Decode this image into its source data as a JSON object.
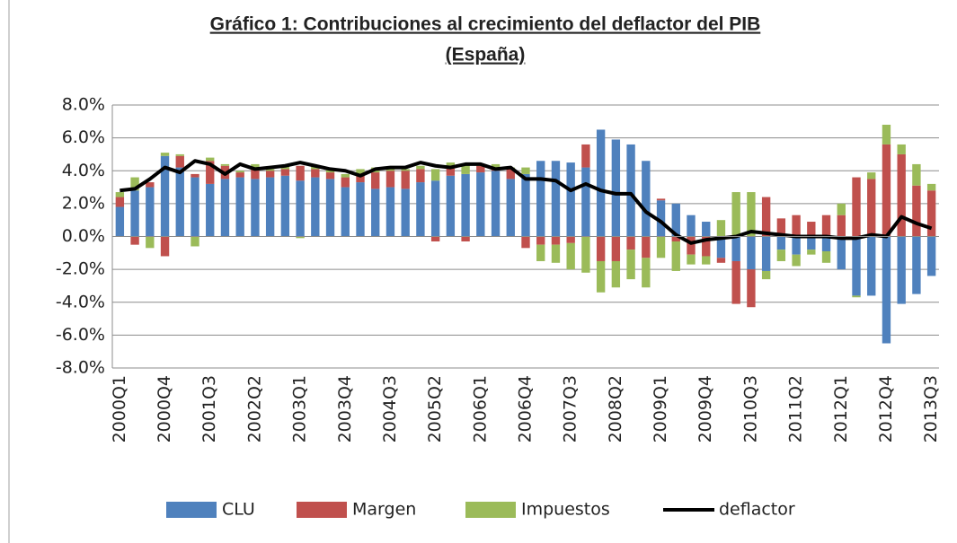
{
  "chart_data": {
    "type": "bar",
    "stacked": true,
    "title": "Gráfico 1: Contribuciones al crecimiento del deflactor del PIB",
    "subtitle": "(España)",
    "categories": [
      "2000Q1",
      null,
      null,
      "2000Q4",
      null,
      null,
      "2001Q3",
      null,
      null,
      "2002Q2",
      null,
      null,
      "2003Q1",
      null,
      null,
      "2003Q4",
      null,
      null,
      "2004Q3",
      null,
      null,
      "2005Q2",
      null,
      null,
      "2006Q1",
      null,
      null,
      "2006Q4",
      null,
      null,
      "2007Q3",
      null,
      null,
      "2008Q2",
      null,
      null,
      "2009Q1",
      null,
      null,
      "2009Q4",
      null,
      null,
      "2010Q3",
      null,
      null,
      "2011Q2",
      null,
      null,
      "2012Q1",
      null,
      null,
      "2012Q4",
      null,
      null,
      "2013Q3"
    ],
    "series": [
      {
        "name": "CLU",
        "color": "#4f81bd",
        "values": [
          1.8,
          2.8,
          3.0,
          4.9,
          4.2,
          3.6,
          3.2,
          3.5,
          3.6,
          3.5,
          3.6,
          3.7,
          3.4,
          3.6,
          3.5,
          3.0,
          3.3,
          2.9,
          3.0,
          2.9,
          3.3,
          3.4,
          3.7,
          3.8,
          3.9,
          4.0,
          3.5,
          3.8,
          4.6,
          4.6,
          4.5,
          4.2,
          6.5,
          5.9,
          5.6,
          4.6,
          2.2,
          2.0,
          1.3,
          0.9,
          -1.3,
          -1.5,
          -2.0,
          -2.1,
          -0.8,
          -1.1,
          -0.8,
          -0.9,
          -2.0,
          -3.6,
          -3.6,
          -6.5,
          -4.1,
          -3.5,
          -2.4
        ]
      },
      {
        "name": "Margen",
        "color": "#c0504d",
        "values": [
          0.6,
          -0.5,
          0.3,
          -1.2,
          0.7,
          0.2,
          1.4,
          0.8,
          0.3,
          0.7,
          0.4,
          0.4,
          0.9,
          0.5,
          0.4,
          0.6,
          0.4,
          1.0,
          1.0,
          1.1,
          0.8,
          -0.3,
          0.6,
          -0.3,
          0.4,
          0.2,
          0.6,
          -0.7,
          -0.5,
          -0.5,
          -0.4,
          1.4,
          -1.5,
          -1.5,
          -0.8,
          -1.3,
          0.1,
          -0.3,
          -1.1,
          -1.2,
          -0.3,
          -2.6,
          -2.3,
          2.4,
          1.1,
          1.3,
          0.9,
          1.3,
          1.3,
          3.6,
          3.5,
          5.6,
          5.0,
          3.1,
          2.8
        ]
      },
      {
        "name": "Impuestos",
        "color": "#9bbb59",
        "values": [
          0.3,
          0.8,
          -0.7,
          0.2,
          0.1,
          -0.6,
          0.2,
          0.1,
          0.1,
          0.2,
          0.1,
          0.2,
          -0.1,
          0.2,
          0.2,
          0.2,
          0.4,
          0.3,
          0.2,
          0.1,
          0.2,
          0.7,
          0.2,
          0.6,
          0.1,
          0.2,
          0.1,
          0.4,
          -1.0,
          -1.1,
          -1.6,
          -2.2,
          -1.9,
          -1.6,
          -1.8,
          -1.8,
          -1.3,
          -1.8,
          -0.6,
          -0.5,
          1.0,
          2.7,
          2.7,
          -0.5,
          -0.7,
          -0.7,
          -0.3,
          -0.7,
          0.7,
          -0.1,
          0.4,
          1.2,
          0.6,
          1.3,
          0.4
        ]
      },
      {
        "name": "deflactor",
        "color": "#000000",
        "type": "line",
        "values": [
          2.8,
          2.9,
          3.5,
          4.2,
          3.9,
          4.6,
          4.4,
          3.8,
          4.4,
          4.1,
          4.2,
          4.3,
          4.5,
          4.3,
          4.1,
          4.0,
          3.7,
          4.1,
          4.2,
          4.2,
          4.5,
          4.3,
          4.2,
          4.4,
          4.4,
          4.1,
          4.2,
          3.5,
          3.5,
          3.4,
          2.8,
          3.2,
          2.8,
          2.6,
          2.6,
          1.5,
          0.9,
          0.1,
          -0.4,
          -0.2,
          -0.1,
          0.0,
          0.3,
          0.2,
          0.1,
          0.0,
          0.0,
          0.0,
          -0.1,
          -0.1,
          0.1,
          0.0,
          1.2,
          0.8,
          0.5
        ]
      }
    ],
    "ylim": [
      -8,
      8
    ],
    "yticks": [
      {
        "value": -8,
        "label": "-8.0%"
      },
      {
        "value": -6,
        "label": "-6.0%"
      },
      {
        "value": -4,
        "label": "-4.0%"
      },
      {
        "value": -2,
        "label": "-2.0%"
      },
      {
        "value": 0,
        "label": "0.0%"
      },
      {
        "value": 2,
        "label": "2.0%"
      },
      {
        "value": 4,
        "label": "4.0%"
      },
      {
        "value": 6,
        "label": "6.0%"
      },
      {
        "value": 8,
        "label": "8.0%"
      }
    ],
    "grid": true,
    "legend": "bottom"
  }
}
